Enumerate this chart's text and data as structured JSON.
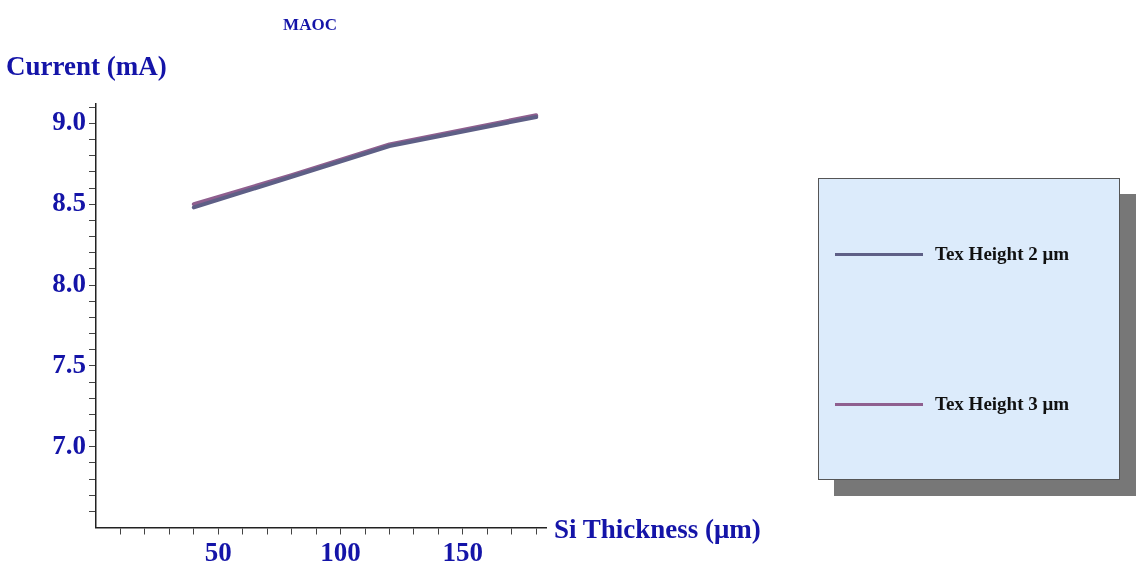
{
  "chart_data": {
    "type": "line",
    "title": "MAOC",
    "xlabel": "Si Thickness (μm)",
    "ylabel": "Current (mA)",
    "x": [
      40,
      80,
      120,
      180
    ],
    "series": [
      {
        "name": "Tex Height 2 μm",
        "color": "#5e5f86",
        "values": [
          8.48,
          8.67,
          8.86,
          9.04
        ]
      },
      {
        "name": "Tex Height 3 μm",
        "color": "#8f5f8f",
        "values": [
          8.5,
          8.68,
          8.87,
          9.05
        ]
      }
    ],
    "xlim": [
      0,
      184
    ],
    "xticks": [
      {
        "value": 10,
        "label": null
      },
      {
        "value": 20,
        "label": null
      },
      {
        "value": 30,
        "label": null
      },
      {
        "value": 40,
        "label": null
      },
      50,
      {
        "value": 60,
        "label": null
      },
      {
        "value": 70,
        "label": null
      },
      {
        "value": 80,
        "label": null
      },
      {
        "value": 90,
        "label": null
      },
      100,
      {
        "value": 110,
        "label": null
      },
      {
        "value": 120,
        "label": null
      },
      {
        "value": 130,
        "label": null
      },
      {
        "value": 140,
        "label": null
      },
      150,
      {
        "value": 160,
        "label": null
      },
      {
        "value": 170,
        "label": null
      },
      {
        "value": 180,
        "label": null
      }
    ],
    "ylim": [
      6.5,
      9.12
    ],
    "yticks": [
      {
        "value": 6.6,
        "label": null
      },
      {
        "value": 6.7,
        "label": null
      },
      {
        "value": 6.8,
        "label": null
      },
      {
        "value": 6.9,
        "label": null
      },
      {
        "value": 7,
        "label": "7.0"
      },
      {
        "value": 7.1,
        "label": null
      },
      {
        "value": 7.2,
        "label": null
      },
      {
        "value": 7.3,
        "label": null
      },
      {
        "value": 7.4,
        "label": null
      },
      7.5,
      {
        "value": 7.6,
        "label": null
      },
      {
        "value": 7.7,
        "label": null
      },
      {
        "value": 7.8,
        "label": null
      },
      {
        "value": 7.9,
        "label": null
      },
      {
        "value": 8,
        "label": "8.0"
      },
      {
        "value": 8.1,
        "label": null
      },
      {
        "value": 8.2,
        "label": null
      },
      {
        "value": 8.3,
        "label": null
      },
      {
        "value": 8.4,
        "label": null
      },
      8.5,
      {
        "value": 8.6,
        "label": null
      },
      {
        "value": 8.7,
        "label": null
      },
      {
        "value": 8.8,
        "label": null
      },
      {
        "value": 8.9,
        "label": null
      },
      {
        "value": 9,
        "label": "9.0"
      },
      {
        "value": 9.1,
        "label": null
      }
    ],
    "grid": false,
    "legend": "right",
    "marker": "none",
    "line_style": "solid"
  }
}
